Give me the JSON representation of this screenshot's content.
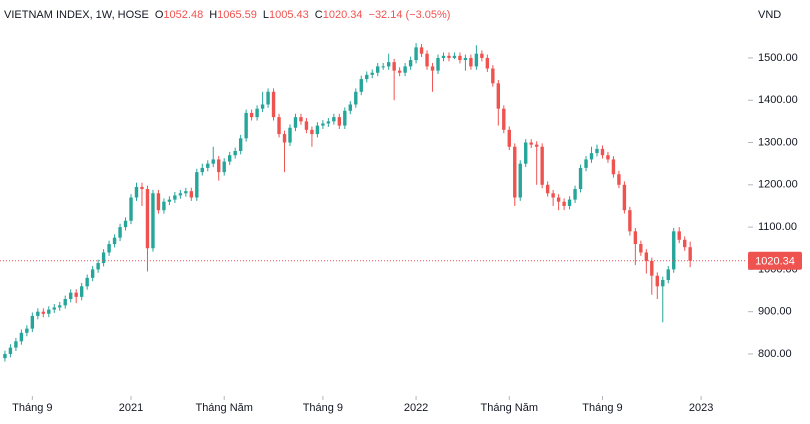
{
  "chart_data": {
    "type": "candlestick",
    "title": "VIETNAM INDEX, 1W, HOSE",
    "ohlc_labels": [
      "O",
      "H",
      "L",
      "C"
    ],
    "change_text": "−32.14 (−3.05%)",
    "y_axis_label": "VND",
    "up_color": "#26a69a",
    "down_color": "#ef5350",
    "grid": false,
    "xlim": [
      -0.9,
      135
    ],
    "xticks": [
      {
        "value": 5,
        "label": "Tháng 9"
      },
      {
        "value": 23,
        "label": "2021"
      },
      {
        "value": 40,
        "label": "Tháng Năm"
      },
      {
        "value": 58,
        "label": "Tháng 9"
      },
      {
        "value": 75,
        "label": "2022"
      },
      {
        "value": 92,
        "label": "Tháng Năm"
      },
      {
        "value": 109,
        "label": "Tháng 9"
      },
      {
        "value": 127,
        "label": "2023"
      }
    ],
    "ylim": [
      703,
      1637
    ],
    "yticks": [
      {
        "value": 800,
        "label": "800.00"
      },
      {
        "value": 900,
        "label": "900.00"
      },
      {
        "value": 1000,
        "label": "1000.00"
      },
      {
        "value": 1100,
        "label": "1100.00"
      },
      {
        "value": 1200,
        "label": "1200.00"
      },
      {
        "value": 1300,
        "label": "1300.00"
      },
      {
        "value": 1400,
        "label": "1400.00"
      },
      {
        "value": 1500,
        "label": "1500.00"
      }
    ],
    "open": [
      790,
      800,
      815,
      830,
      850,
      860,
      890,
      900,
      895,
      905,
      910,
      915,
      930,
      945,
      935,
      960,
      980,
      1000,
      1015,
      1040,
      1060,
      1075,
      1100,
      1115,
      1170,
      1195,
      1190,
      1050,
      1180,
      1140,
      1160,
      1165,
      1175,
      1180,
      1185,
      1170,
      1230,
      1240,
      1250,
      1260,
      1230,
      1255,
      1270,
      1280,
      1310,
      1370,
      1360,
      1380,
      1390,
      1420,
      1360,
      1320,
      1300,
      1335,
      1360,
      1350,
      1330,
      1320,
      1340,
      1345,
      1350,
      1360,
      1340,
      1375,
      1390,
      1420,
      1450,
      1460,
      1465,
      1480,
      1480,
      1490,
      1470,
      1465,
      1480,
      1495,
      1525,
      1510,
      1480,
      1470,
      1500,
      1505,
      1500,
      1505,
      1495,
      1500,
      1480,
      1510,
      1500,
      1475,
      1440,
      1380,
      1330,
      1290,
      1170,
      1250,
      1300,
      1295,
      1290,
      1200,
      1180,
      1170,
      1160,
      1150,
      1165,
      1190,
      1240,
      1260,
      1275,
      1285,
      1270,
      1260,
      1225,
      1200,
      1140,
      1090,
      1060,
      1040,
      1020,
      985,
      960,
      975,
      1000,
      1090,
      1070,
      1052.48
    ],
    "high": [
      808,
      823,
      838,
      858,
      868,
      898,
      908,
      908,
      913,
      918,
      923,
      938,
      953,
      953,
      968,
      988,
      1008,
      1023,
      1048,
      1068,
      1083,
      1108,
      1123,
      1178,
      1205,
      1205,
      1198,
      1188,
      1188,
      1168,
      1173,
      1183,
      1188,
      1193,
      1193,
      1238,
      1250,
      1258,
      1290,
      1268,
      1263,
      1278,
      1288,
      1318,
      1378,
      1378,
      1388,
      1420,
      1428,
      1428,
      1368,
      1328,
      1343,
      1368,
      1368,
      1358,
      1338,
      1348,
      1353,
      1358,
      1368,
      1368,
      1383,
      1398,
      1428,
      1458,
      1468,
      1473,
      1488,
      1488,
      1510,
      1498,
      1478,
      1488,
      1503,
      1535,
      1533,
      1518,
      1488,
      1508,
      1513,
      1513,
      1513,
      1513,
      1508,
      1508,
      1530,
      1518,
      1508,
      1483,
      1448,
      1388,
      1338,
      1298,
      1258,
      1308,
      1308,
      1303,
      1298,
      1208,
      1188,
      1178,
      1168,
      1173,
      1198,
      1248,
      1268,
      1290,
      1295,
      1293,
      1278,
      1268,
      1233,
      1208,
      1148,
      1098,
      1068,
      1048,
      1028,
      993,
      983,
      1008,
      1098,
      1100,
      1078,
      1065.59
    ],
    "low": [
      782,
      792,
      807,
      822,
      842,
      852,
      882,
      887,
      887,
      897,
      902,
      907,
      922,
      920,
      927,
      952,
      972,
      992,
      1007,
      1032,
      1052,
      1067,
      1092,
      1107,
      1162,
      1150,
      995,
      1042,
      1132,
      1132,
      1152,
      1157,
      1167,
      1172,
      1162,
      1162,
      1222,
      1232,
      1242,
      1210,
      1222,
      1247,
      1262,
      1272,
      1302,
      1352,
      1352,
      1372,
      1382,
      1352,
      1312,
      1230,
      1292,
      1327,
      1342,
      1322,
      1290,
      1312,
      1332,
      1337,
      1342,
      1332,
      1332,
      1367,
      1382,
      1412,
      1442,
      1452,
      1457,
      1472,
      1472,
      1400,
      1457,
      1457,
      1472,
      1487,
      1502,
      1472,
      1420,
      1462,
      1492,
      1492,
      1497,
      1487,
      1470,
      1472,
      1472,
      1492,
      1467,
      1432,
      1340,
      1322,
      1282,
      1150,
      1162,
      1242,
      1287,
      1200,
      1192,
      1172,
      1150,
      1140,
      1140,
      1142,
      1157,
      1182,
      1232,
      1252,
      1267,
      1262,
      1252,
      1217,
      1192,
      1132,
      1080,
      1010,
      1032,
      990,
      940,
      930,
      875,
      967,
      992,
      1062,
      1044,
      1005.43
    ],
    "close": [
      800,
      815,
      830,
      850,
      860,
      890,
      900,
      895,
      905,
      910,
      915,
      930,
      945,
      935,
      960,
      980,
      1000,
      1015,
      1040,
      1060,
      1075,
      1100,
      1115,
      1170,
      1195,
      1190,
      1050,
      1180,
      1140,
      1160,
      1165,
      1175,
      1180,
      1185,
      1170,
      1230,
      1240,
      1250,
      1260,
      1230,
      1255,
      1270,
      1280,
      1310,
      1370,
      1360,
      1380,
      1390,
      1420,
      1360,
      1320,
      1300,
      1335,
      1360,
      1350,
      1330,
      1320,
      1340,
      1345,
      1350,
      1360,
      1340,
      1375,
      1390,
      1420,
      1450,
      1460,
      1465,
      1480,
      1480,
      1490,
      1470,
      1465,
      1480,
      1495,
      1525,
      1510,
      1480,
      1470,
      1500,
      1505,
      1500,
      1505,
      1495,
      1500,
      1480,
      1510,
      1500,
      1475,
      1440,
      1380,
      1330,
      1290,
      1170,
      1250,
      1300,
      1295,
      1290,
      1200,
      1180,
      1170,
      1160,
      1150,
      1165,
      1190,
      1240,
      1260,
      1275,
      1285,
      1270,
      1260,
      1225,
      1200,
      1140,
      1090,
      1060,
      1040,
      1020,
      985,
      960,
      975,
      1000,
      1090,
      1070,
      1052.48,
      1020.34
    ]
  }
}
